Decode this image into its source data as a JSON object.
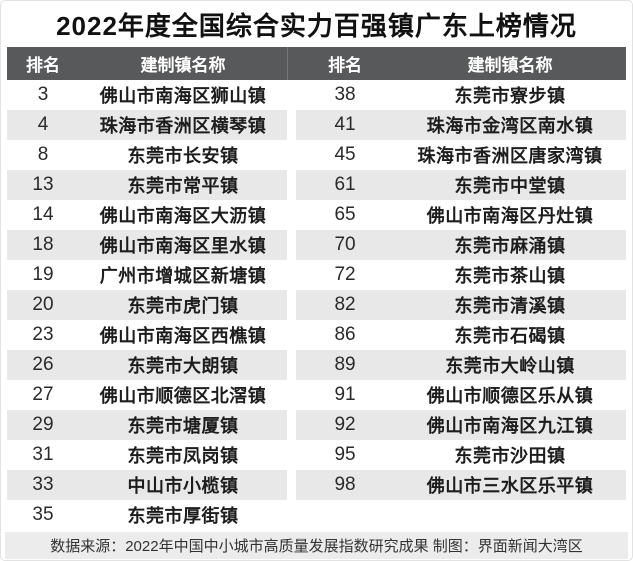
{
  "title": "2022年度全国综合实力百强镇广东上榜情况",
  "chart_data": {
    "type": "table",
    "title": "2022年度全国综合实力百强镇广东上榜情况",
    "columns": [
      "排名",
      "建制镇名称",
      "排名",
      "建制镇名称"
    ],
    "rows": [
      [
        "3",
        "佛山市南海区狮山镇",
        "38",
        "东莞市寮步镇"
      ],
      [
        "4",
        "珠海市香洲区横琴镇",
        "41",
        "珠海市金湾区南水镇"
      ],
      [
        "8",
        "东莞市长安镇",
        "45",
        "珠海市香洲区唐家湾镇"
      ],
      [
        "13",
        "东莞市常平镇",
        "61",
        "东莞市中堂镇"
      ],
      [
        "14",
        "佛山市南海区大沥镇",
        "65",
        "佛山市南海区丹灶镇"
      ],
      [
        "18",
        "佛山市南海区里水镇",
        "70",
        "东莞市麻涌镇"
      ],
      [
        "19",
        "广州市增城区新塘镇",
        "72",
        "东莞市茶山镇"
      ],
      [
        "20",
        "东莞市虎门镇",
        "82",
        "东莞市清溪镇"
      ],
      [
        "23",
        "佛山市南海区西樵镇",
        "86",
        "东莞市石碣镇"
      ],
      [
        "26",
        "东莞市大朗镇",
        "89",
        "东莞市大岭山镇"
      ],
      [
        "27",
        "佛山市顺德区北滘镇",
        "91",
        "佛山市顺德区乐从镇"
      ],
      [
        "29",
        "东莞市塘厦镇",
        "92",
        "佛山市南海区九江镇"
      ],
      [
        "31",
        "东莞市凤岗镇",
        "95",
        "东莞市沙田镇"
      ],
      [
        "33",
        "中山市小榄镇",
        "98",
        "佛山市三水区乐平镇"
      ],
      [
        "35",
        "东莞市厚街镇",
        "",
        ""
      ]
    ],
    "source_note": "数据来源：2022年中国中小城市高质量发展指数研究成果 制图：界面新闻大湾区",
    "layout": {
      "striped": true,
      "two_column_groups": true,
      "legend_position": "none"
    }
  },
  "colors": {
    "header_bg": "#58595b",
    "stripe": "#e8e8e8",
    "footer_bg": "#ececec",
    "title_text": "#111111",
    "header_text": "#ffffff",
    "body_text": "#1d1d1d"
  }
}
